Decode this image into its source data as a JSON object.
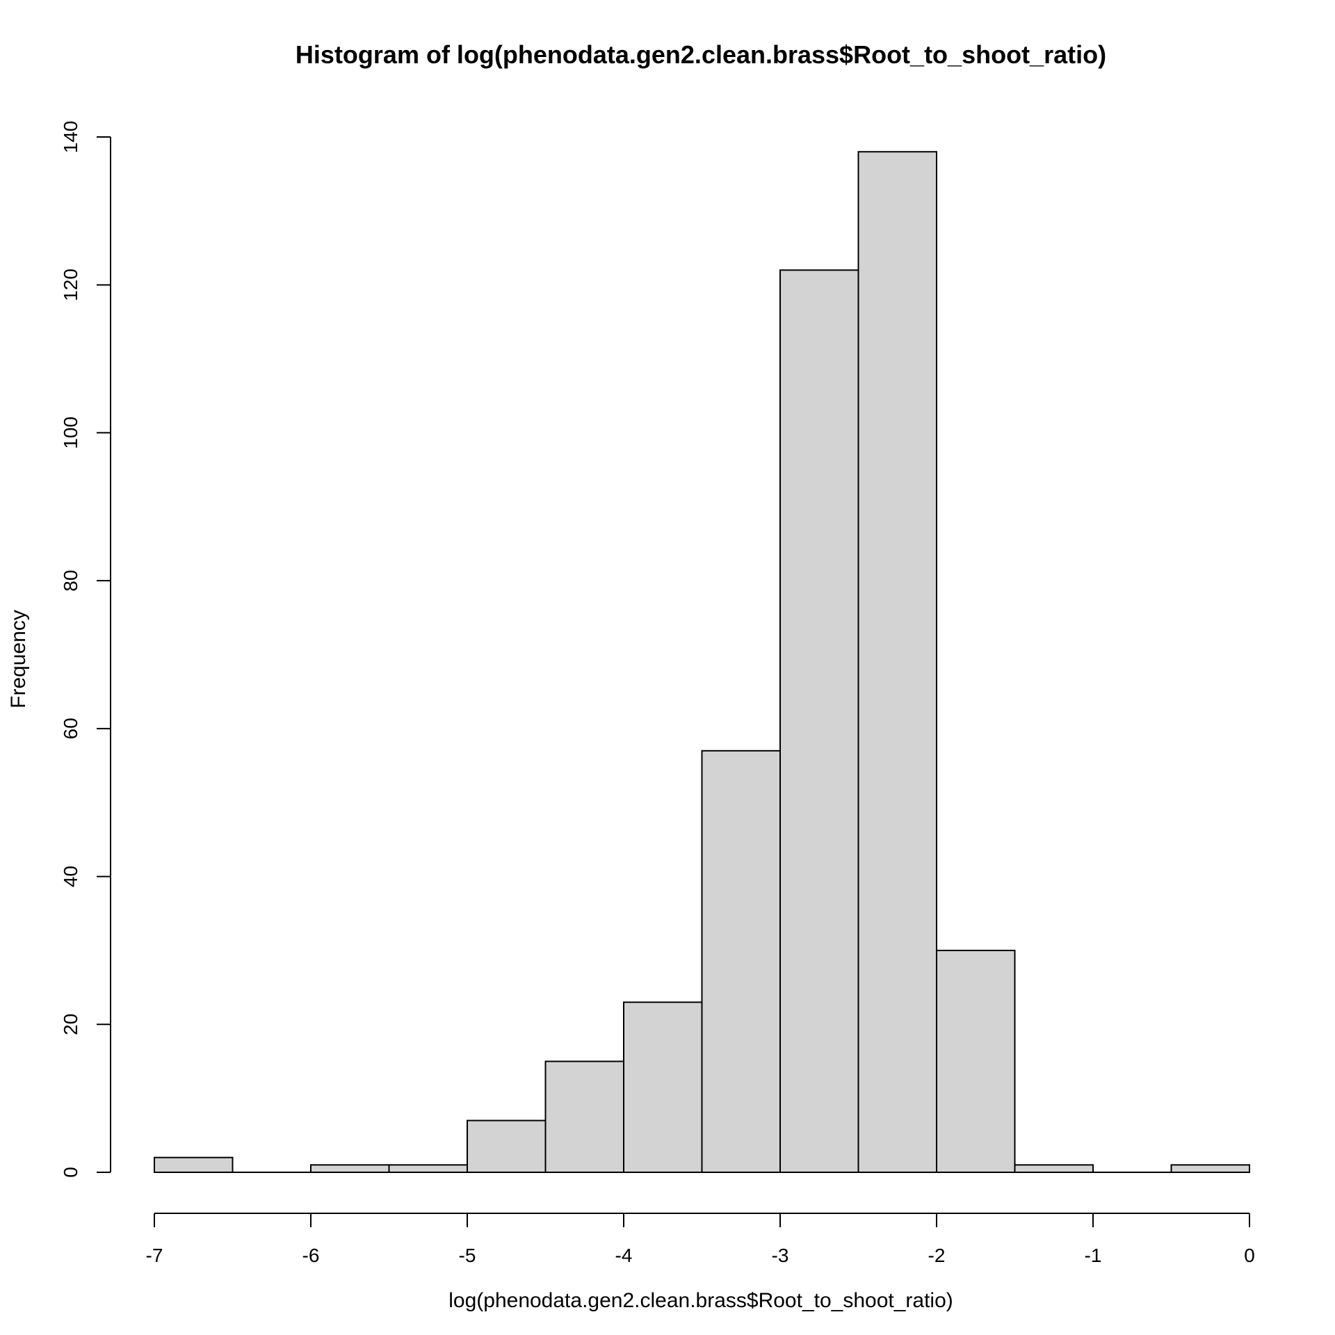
{
  "chart_data": {
    "type": "bar",
    "histogram": true,
    "title": "Histogram of log(phenodata.gen2.clean.brass$Root_to_shoot_ratio)",
    "xlabel": "log(phenodata.gen2.clean.brass$Root_to_shoot_ratio)",
    "ylabel": "Frequency",
    "bins": [
      {
        "x0": -7.0,
        "x1": -6.5,
        "count": 2
      },
      {
        "x0": -6.5,
        "x1": -6.0,
        "count": 0
      },
      {
        "x0": -6.0,
        "x1": -5.5,
        "count": 1
      },
      {
        "x0": -5.5,
        "x1": -5.0,
        "count": 1
      },
      {
        "x0": -5.0,
        "x1": -4.5,
        "count": 7
      },
      {
        "x0": -4.5,
        "x1": -4.0,
        "count": 15
      },
      {
        "x0": -4.0,
        "x1": -3.5,
        "count": 23
      },
      {
        "x0": -3.5,
        "x1": -3.0,
        "count": 57
      },
      {
        "x0": -3.0,
        "x1": -2.5,
        "count": 122
      },
      {
        "x0": -2.5,
        "x1": -2.0,
        "count": 138
      },
      {
        "x0": -2.0,
        "x1": -1.5,
        "count": 30
      },
      {
        "x0": -1.5,
        "x1": -1.0,
        "count": 1
      },
      {
        "x0": -1.0,
        "x1": -0.5,
        "count": 0
      },
      {
        "x0": -0.5,
        "x1": 0.0,
        "count": 1
      }
    ],
    "xlim": [
      -7,
      0
    ],
    "ylim": [
      0,
      140
    ],
    "xticks": [
      -7,
      -6,
      -5,
      -4,
      -3,
      -2,
      -1,
      0
    ],
    "yticks": [
      0,
      20,
      40,
      60,
      80,
      100,
      120,
      140
    ],
    "xtick_labels": [
      "-7",
      "-6",
      "-5",
      "-4",
      "-3",
      "-2",
      "-1",
      "0"
    ],
    "ytick_labels": [
      "0",
      "20",
      "40",
      "60",
      "80",
      "100",
      "120",
      "140"
    ],
    "grid": false,
    "colors": {
      "bar_fill": "#d3d3d3",
      "bar_stroke": "#000000"
    }
  }
}
